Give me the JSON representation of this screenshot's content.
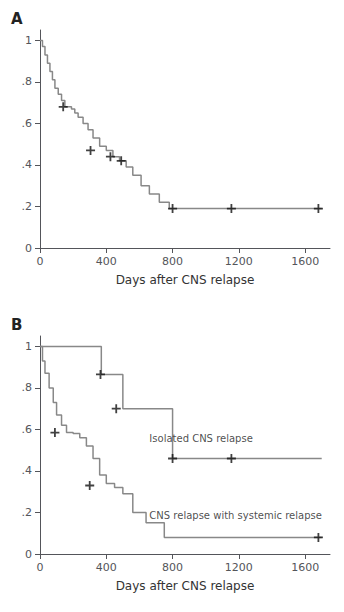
{
  "chart_data": [
    {
      "type": "line",
      "title": "A",
      "xlabel": "Days after CNS relapse",
      "xlim": [
        0,
        1750
      ],
      "ylim": [
        0,
        1.05
      ],
      "xticks": [
        0,
        400,
        800,
        1200,
        1600
      ],
      "yticks": [
        0,
        {
          "value": 0.2,
          "label": ".2"
        },
        {
          "value": 0.4,
          "label": ".4"
        },
        {
          "value": 0.6,
          "label": ".6"
        },
        {
          "value": 0.8,
          "label": ".8"
        },
        1
      ],
      "grid": false,
      "series": [
        {
          "type": "line",
          "line_style": "step",
          "color": "#888888",
          "x": [
            0,
            15,
            30,
            45,
            60,
            75,
            90,
            110,
            130,
            150,
            170,
            190,
            210,
            230,
            260,
            290,
            320,
            360,
            400,
            440,
            480,
            520,
            560,
            610,
            660,
            720,
            780,
            1700
          ],
          "values": [
            1.0,
            0.97,
            0.93,
            0.89,
            0.85,
            0.81,
            0.77,
            0.74,
            0.71,
            0.68,
            0.68,
            0.67,
            0.65,
            0.63,
            0.6,
            0.57,
            0.53,
            0.49,
            0.47,
            0.44,
            0.42,
            0.39,
            0.35,
            0.3,
            0.26,
            0.22,
            0.19,
            0.19
          ]
        },
        {
          "type": "scatter",
          "marker": "+",
          "color": "#111111",
          "x": [
            140,
            305,
            425,
            490,
            800,
            1155,
            1680
          ],
          "values": [
            0.68,
            0.47,
            0.44,
            0.42,
            0.19,
            0.19,
            0.19
          ]
        }
      ]
    },
    {
      "type": "line",
      "title": "B",
      "xlabel": "Days after CNS relapse",
      "xlim": [
        0,
        1750
      ],
      "ylim": [
        0,
        1.05
      ],
      "xticks": [
        0,
        400,
        800,
        1200,
        1600
      ],
      "yticks": [
        0,
        {
          "value": 0.2,
          "label": ".2"
        },
        {
          "value": 0.4,
          "label": ".4"
        },
        {
          "value": 0.6,
          "label": ".6"
        },
        {
          "value": 0.8,
          "label": ".8"
        },
        1
      ],
      "grid": false,
      "series": [
        {
          "type": "line",
          "line_style": "step",
          "color": "#888888",
          "x": [
            0,
            10,
            20,
            40,
            60,
            80,
            100,
            130,
            160,
            200,
            280,
            370,
            400,
            440,
            500,
            800,
            1200,
            1700
          ],
          "values": [
            1.0,
            1.0,
            1.0,
            1.0,
            1.0,
            1.0,
            1.0,
            1.0,
            1.0,
            1.0,
            1.0,
            0.865,
            0.865,
            0.865,
            0.7,
            0.46,
            0.46,
            0.46
          ]
        },
        {
          "type": "scatter",
          "marker": "+",
          "color": "#111111",
          "x": [
            365,
            460,
            800,
            1155
          ],
          "values": [
            0.865,
            0.7,
            0.46,
            0.46
          ]
        },
        {
          "type": "line",
          "line_style": "step",
          "color": "#888888",
          "x": [
            0,
            15,
            30,
            55,
            80,
            100,
            130,
            160,
            200,
            240,
            280,
            320,
            360,
            400,
            450,
            500,
            560,
            640,
            750,
            1700
          ],
          "values": [
            1.0,
            0.93,
            0.87,
            0.8,
            0.73,
            0.67,
            0.62,
            0.585,
            0.58,
            0.56,
            0.52,
            0.46,
            0.38,
            0.34,
            0.32,
            0.29,
            0.2,
            0.15,
            0.08,
            0.08
          ]
        },
        {
          "type": "scatter",
          "marker": "+",
          "color": "#111111",
          "x": [
            90,
            300,
            1680
          ],
          "values": [
            0.585,
            0.33,
            0.08
          ]
        }
      ],
      "annotations": [
        {
          "text": "Isolated CNS relapse",
          "x": 660,
          "y": 0.53
        },
        {
          "text": "CNS relapse with systemic relapse",
          "x": 660,
          "y": 0.16
        }
      ]
    }
  ]
}
